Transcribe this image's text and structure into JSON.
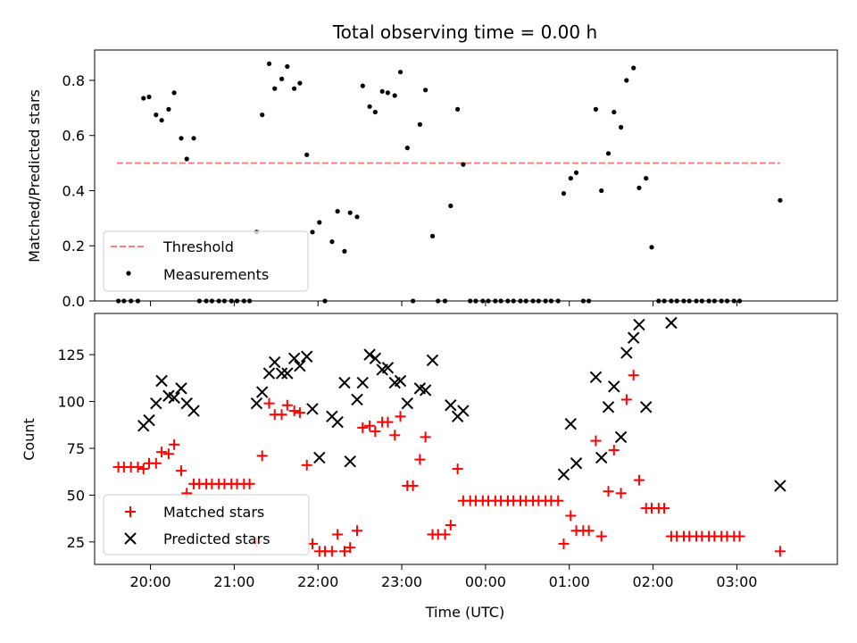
{
  "chart_data": [
    {
      "type": "scatter",
      "title": "Total observing time = 0.00 h",
      "ylabel": "Matched/Predicted stars",
      "xlabel": "",
      "xlim": [
        "19:20",
        "04:12"
      ],
      "ylim": [
        0,
        0.91
      ],
      "yticks": [
        "0.0",
        "0.2",
        "0.4",
        "0.6",
        "0.8"
      ],
      "grid": false,
      "legend": {
        "placement": "lower-left",
        "entries": [
          "Threshold",
          "Measurements"
        ]
      },
      "threshold": {
        "name": "Threshold",
        "y": 0.5,
        "x_start": "19:36",
        "x_end": "03:31",
        "color": "#ff7f7f",
        "style": "dashed"
      },
      "series": [
        {
          "name": "Measurements",
          "color": "#000000",
          "marker": "dot",
          "points": [
            [
              "19:37",
              0
            ],
            [
              "19:41",
              0
            ],
            [
              "19:46",
              0
            ],
            [
              "19:51",
              0
            ],
            [
              "19:55",
              0.735
            ],
            [
              "19:59",
              0.74
            ],
            [
              "20:04",
              0.675
            ],
            [
              "20:08",
              0.655
            ],
            [
              "20:13",
              0.695
            ],
            [
              "20:17",
              0.755
            ],
            [
              "20:22",
              0.59
            ],
            [
              "20:26",
              0.515
            ],
            [
              "20:31",
              0.59
            ],
            [
              "20:35",
              0
            ],
            [
              "20:40",
              0
            ],
            [
              "20:44",
              0
            ],
            [
              "20:49",
              0
            ],
            [
              "20:53",
              0
            ],
            [
              "20:58",
              0
            ],
            [
              "21:02",
              0
            ],
            [
              "21:07",
              0
            ],
            [
              "21:11",
              0
            ],
            [
              "21:16",
              0.25
            ],
            [
              "21:20",
              0.675
            ],
            [
              "21:25",
              0.86
            ],
            [
              "21:29",
              0.77
            ],
            [
              "21:34",
              0.805
            ],
            [
              "21:38",
              0.85
            ],
            [
              "21:43",
              0.77
            ],
            [
              "21:47",
              0.79
            ],
            [
              "21:52",
              0.53
            ],
            [
              "21:56",
              0.25
            ],
            [
              "22:01",
              0.285
            ],
            [
              "22:05",
              0
            ],
            [
              "22:10",
              0.215
            ],
            [
              "22:14",
              0.325
            ],
            [
              "22:19",
              0.18
            ],
            [
              "22:23",
              0.32
            ],
            [
              "22:28",
              0.305
            ],
            [
              "22:32",
              0.78
            ],
            [
              "22:37",
              0.705
            ],
            [
              "22:41",
              0.685
            ],
            [
              "22:46",
              0.76
            ],
            [
              "22:50",
              0.755
            ],
            [
              "22:55",
              0.745
            ],
            [
              "22:59",
              0.83
            ],
            [
              "23:04",
              0.555
            ],
            [
              "23:08",
              0
            ],
            [
              "23:13",
              0.64
            ],
            [
              "23:17",
              0.765
            ],
            [
              "23:22",
              0.235
            ],
            [
              "23:26",
              0
            ],
            [
              "23:31",
              0
            ],
            [
              "23:35",
              0.345
            ],
            [
              "23:40",
              0.695
            ],
            [
              "23:44",
              0.495
            ],
            [
              "23:49",
              0
            ],
            [
              "23:53",
              0
            ],
            [
              "23:58",
              0
            ],
            [
              "00:02",
              0
            ],
            [
              "00:07",
              0
            ],
            [
              "00:11",
              0
            ],
            [
              "00:16",
              0
            ],
            [
              "00:20",
              0
            ],
            [
              "00:25",
              0
            ],
            [
              "00:29",
              0
            ],
            [
              "00:34",
              0
            ],
            [
              "00:38",
              0
            ],
            [
              "00:43",
              0
            ],
            [
              "00:47",
              0
            ],
            [
              "00:52",
              0
            ],
            [
              "00:56",
              0.39
            ],
            [
              "01:01",
              0.445
            ],
            [
              "01:05",
              0.465
            ],
            [
              "01:10",
              0
            ],
            [
              "01:14",
              0
            ],
            [
              "01:19",
              0.695
            ],
            [
              "01:23",
              0.4
            ],
            [
              "01:28",
              0.535
            ],
            [
              "01:32",
              0.685
            ],
            [
              "01:37",
              0.63
            ],
            [
              "01:41",
              0.8
            ],
            [
              "01:46",
              0.845
            ],
            [
              "01:50",
              0.41
            ],
            [
              "01:55",
              0.445
            ],
            [
              "01:59",
              0.195
            ],
            [
              "02:04",
              0
            ],
            [
              "02:08",
              0
            ],
            [
              "02:13",
              0
            ],
            [
              "02:17",
              0
            ],
            [
              "02:22",
              0
            ],
            [
              "02:26",
              0
            ],
            [
              "02:31",
              0
            ],
            [
              "02:35",
              0
            ],
            [
              "02:40",
              0
            ],
            [
              "02:44",
              0
            ],
            [
              "02:49",
              0
            ],
            [
              "02:53",
              0
            ],
            [
              "02:58",
              0
            ],
            [
              "03:02",
              0
            ],
            [
              "03:31",
              0.365
            ]
          ]
        }
      ]
    },
    {
      "type": "scatter",
      "title": "",
      "xlabel": "Time (UTC)",
      "ylabel": "Count",
      "xlim": [
        "19:20",
        "04:12"
      ],
      "ylim": [
        13,
        147
      ],
      "xticks": [
        "20:00",
        "21:00",
        "22:00",
        "23:00",
        "00:00",
        "01:00",
        "02:00",
        "03:00"
      ],
      "yticks": [
        "25",
        "50",
        "75",
        "100",
        "125"
      ],
      "grid": false,
      "legend": {
        "placement": "lower-left",
        "entries": [
          "Matched stars",
          "Predicted stars"
        ]
      },
      "series": [
        {
          "name": "Matched stars",
          "color": "#ff0000",
          "marker": "plus",
          "points": [
            [
              "19:37",
              65
            ],
            [
              "19:41",
              65
            ],
            [
              "19:46",
              65
            ],
            [
              "19:51",
              65
            ],
            [
              "19:55",
              64
            ],
            [
              "19:59",
              67
            ],
            [
              "20:04",
              67
            ],
            [
              "20:08",
              73
            ],
            [
              "20:13",
              72
            ],
            [
              "20:17",
              77
            ],
            [
              "20:22",
              63
            ],
            [
              "20:26",
              51
            ],
            [
              "20:31",
              56
            ],
            [
              "20:35",
              56
            ],
            [
              "20:40",
              56
            ],
            [
              "20:44",
              56
            ],
            [
              "20:49",
              56
            ],
            [
              "20:53",
              56
            ],
            [
              "20:58",
              56
            ],
            [
              "21:02",
              56
            ],
            [
              "21:07",
              56
            ],
            [
              "21:11",
              56
            ],
            [
              "21:16",
              25
            ],
            [
              "21:20",
              71
            ],
            [
              "21:25",
              99
            ],
            [
              "21:29",
              93
            ],
            [
              "21:34",
              93
            ],
            [
              "21:38",
              98
            ],
            [
              "21:43",
              95
            ],
            [
              "21:47",
              94
            ],
            [
              "21:52",
              66
            ],
            [
              "21:56",
              24
            ],
            [
              "22:01",
              20
            ],
            [
              "22:05",
              20
            ],
            [
              "22:10",
              20
            ],
            [
              "22:14",
              29
            ],
            [
              "22:19",
              20
            ],
            [
              "22:23",
              22
            ],
            [
              "22:28",
              31
            ],
            [
              "22:32",
              86
            ],
            [
              "22:37",
              87
            ],
            [
              "22:41",
              84
            ],
            [
              "22:46",
              89
            ],
            [
              "22:50",
              89
            ],
            [
              "22:55",
              82
            ],
            [
              "22:59",
              92
            ],
            [
              "23:04",
              55
            ],
            [
              "23:08",
              55
            ],
            [
              "23:13",
              69
            ],
            [
              "23:17",
              81
            ],
            [
              "23:22",
              29
            ],
            [
              "23:26",
              29
            ],
            [
              "23:31",
              29
            ],
            [
              "23:35",
              34
            ],
            [
              "23:40",
              64
            ],
            [
              "23:44",
              47
            ],
            [
              "23:49",
              47
            ],
            [
              "23:53",
              47
            ],
            [
              "23:58",
              47
            ],
            [
              "00:02",
              47
            ],
            [
              "00:07",
              47
            ],
            [
              "00:11",
              47
            ],
            [
              "00:16",
              47
            ],
            [
              "00:20",
              47
            ],
            [
              "00:25",
              47
            ],
            [
              "00:29",
              47
            ],
            [
              "00:34",
              47
            ],
            [
              "00:38",
              47
            ],
            [
              "00:43",
              47
            ],
            [
              "00:47",
              47
            ],
            [
              "00:52",
              47
            ],
            [
              "00:56",
              24
            ],
            [
              "01:01",
              39
            ],
            [
              "01:05",
              31
            ],
            [
              "01:10",
              31
            ],
            [
              "01:14",
              31
            ],
            [
              "01:19",
              79
            ],
            [
              "01:23",
              28
            ],
            [
              "01:28",
              52
            ],
            [
              "01:32",
              74
            ],
            [
              "01:37",
              51
            ],
            [
              "01:41",
              101
            ],
            [
              "01:46",
              114
            ],
            [
              "01:50",
              58
            ],
            [
              "01:55",
              43
            ],
            [
              "01:59",
              43
            ],
            [
              "02:04",
              43
            ],
            [
              "02:08",
              43
            ],
            [
              "02:13",
              28
            ],
            [
              "02:17",
              28
            ],
            [
              "02:22",
              28
            ],
            [
              "02:26",
              28
            ],
            [
              "02:31",
              28
            ],
            [
              "02:35",
              28
            ],
            [
              "02:40",
              28
            ],
            [
              "02:44",
              28
            ],
            [
              "02:49",
              28
            ],
            [
              "02:53",
              28
            ],
            [
              "02:58",
              28
            ],
            [
              "03:02",
              28
            ],
            [
              "03:31",
              20
            ]
          ]
        },
        {
          "name": "Predicted stars",
          "color": "#000000",
          "marker": "x",
          "points": [
            [
              "19:55",
              87
            ],
            [
              "19:59",
              90
            ],
            [
              "20:04",
              99
            ],
            [
              "20:08",
              111
            ],
            [
              "20:13",
              103
            ],
            [
              "20:17",
              102
            ],
            [
              "20:22",
              107
            ],
            [
              "20:26",
              99
            ],
            [
              "20:31",
              95
            ],
            [
              "21:16",
              99
            ],
            [
              "21:20",
              105
            ],
            [
              "21:25",
              115
            ],
            [
              "21:29",
              121
            ],
            [
              "21:34",
              115
            ],
            [
              "21:38",
              115
            ],
            [
              "21:43",
              123
            ],
            [
              "21:47",
              119
            ],
            [
              "21:52",
              124
            ],
            [
              "21:56",
              96
            ],
            [
              "22:01",
              70
            ],
            [
              "22:10",
              92
            ],
            [
              "22:14",
              89
            ],
            [
              "22:19",
              110
            ],
            [
              "22:23",
              68
            ],
            [
              "22:28",
              101
            ],
            [
              "22:32",
              110
            ],
            [
              "22:37",
              125
            ],
            [
              "22:41",
              123
            ],
            [
              "22:46",
              117
            ],
            [
              "22:50",
              118
            ],
            [
              "22:55",
              110
            ],
            [
              "22:59",
              111
            ],
            [
              "23:04",
              99
            ],
            [
              "23:13",
              107
            ],
            [
              "23:17",
              106
            ],
            [
              "23:22",
              122
            ],
            [
              "23:35",
              98
            ],
            [
              "23:40",
              92
            ],
            [
              "23:44",
              95
            ],
            [
              "00:56",
              61
            ],
            [
              "01:01",
              88
            ],
            [
              "01:05",
              67
            ],
            [
              "01:19",
              113
            ],
            [
              "01:23",
              70
            ],
            [
              "01:28",
              97
            ],
            [
              "01:32",
              108
            ],
            [
              "01:37",
              81
            ],
            [
              "01:41",
              126
            ],
            [
              "01:46",
              134
            ],
            [
              "01:50",
              141
            ],
            [
              "01:55",
              97
            ],
            [
              "02:13",
              142
            ],
            [
              "03:31",
              55
            ]
          ]
        }
      ]
    }
  ]
}
